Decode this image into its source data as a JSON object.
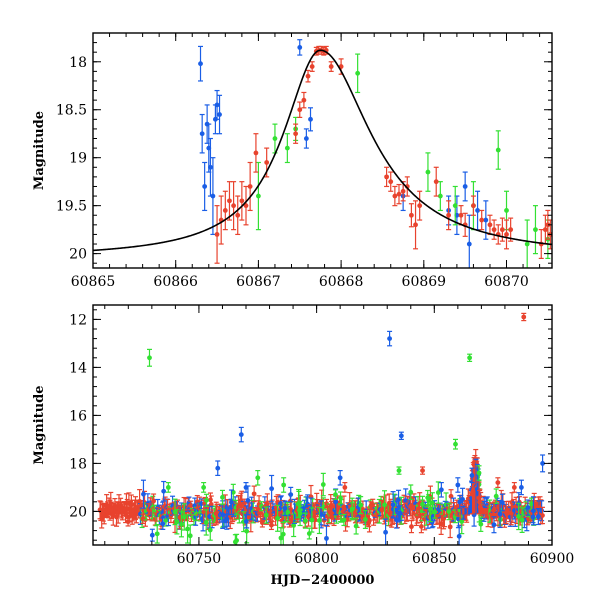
{
  "chart_data": [
    {
      "type": "scatter",
      "panel": "top",
      "xlabel": "",
      "ylabel": "Magnitude",
      "xlim": [
        60865,
        60870.55
      ],
      "ylim": [
        20.15,
        17.7
      ],
      "x_ticks": [
        60865,
        60866,
        60867,
        60868,
        60869,
        60870
      ],
      "x_tick_labels": [
        "60865",
        "60866",
        "60867",
        "60868",
        "60869",
        "60870"
      ],
      "y_ticks": [
        18,
        18.5,
        19,
        19.5,
        20
      ],
      "y_tick_labels": [
        "18",
        "18.5",
        "19",
        "19.5",
        "20"
      ],
      "model_curve": {
        "name": "",
        "color": "#000000",
        "t0": 60867.75,
        "peak": 17.88,
        "base": 20.05,
        "tau_rise": 0.55,
        "tau_fall": 0.75
      },
      "series": [
        {
          "color": "#1a5ee6",
          "points": [
            [
              60866.3,
              18.02,
              0.18
            ],
            [
              60866.32,
              18.75,
              0.2
            ],
            [
              60866.35,
              19.3,
              0.25
            ],
            [
              60866.38,
              18.65,
              0.2
            ],
            [
              60866.4,
              18.9,
              0.25
            ],
            [
              60866.42,
              19.1,
              0.3
            ],
            [
              60866.45,
              19.4,
              0.4
            ],
            [
              60866.48,
              18.6,
              0.15
            ],
            [
              60866.5,
              18.45,
              0.15
            ],
            [
              60866.53,
              18.55,
              0.2
            ],
            [
              60867.5,
              17.85,
              0.08
            ],
            [
              60867.58,
              18.8,
              0.1
            ],
            [
              60867.63,
              18.6,
              0.12
            ],
            [
              60869.3,
              19.55,
              0.15
            ],
            [
              60869.4,
              19.6,
              0.2
            ],
            [
              60869.5,
              19.3,
              0.15
            ],
            [
              60869.55,
              19.9,
              0.3
            ],
            [
              60869.65,
              19.55,
              0.2
            ],
            [
              60869.75,
              19.65,
              0.2
            ],
            [
              60868.75,
              19.4,
              0.15
            ]
          ]
        },
        {
          "color": "#33e033",
          "points": [
            [
              60867.0,
              19.4,
              0.35
            ],
            [
              60867.2,
              18.8,
              0.15
            ],
            [
              60867.35,
              18.9,
              0.15
            ],
            [
              60867.45,
              18.7,
              0.12
            ],
            [
              60868.2,
              18.12,
              0.2
            ],
            [
              60869.05,
              19.15,
              0.2
            ],
            [
              60869.2,
              19.4,
              0.15
            ],
            [
              60869.38,
              19.5,
              0.2
            ],
            [
              60869.6,
              19.5,
              0.25
            ],
            [
              60869.9,
              18.92,
              0.2
            ],
            [
              60870.0,
              19.55,
              0.2
            ],
            [
              60870.25,
              19.9,
              0.25
            ],
            [
              60870.35,
              19.75,
              0.25
            ],
            [
              60870.5,
              19.85,
              0.2
            ]
          ]
        },
        {
          "color": "#e8432e",
          "points": [
            [
              60866.5,
              19.8,
              0.3
            ],
            [
              60866.55,
              19.65,
              0.25
            ],
            [
              60866.6,
              19.55,
              0.2
            ],
            [
              60866.65,
              19.45,
              0.2
            ],
            [
              60866.7,
              19.5,
              0.25
            ],
            [
              60866.75,
              19.6,
              0.2
            ],
            [
              60866.8,
              19.45,
              0.2
            ],
            [
              60866.85,
              19.5,
              0.2
            ],
            [
              60866.9,
              19.3,
              0.25
            ],
            [
              60866.97,
              18.95,
              0.2
            ],
            [
              60867.1,
              19.05,
              0.15
            ],
            [
              60867.45,
              18.75,
              0.1
            ],
            [
              60867.5,
              18.5,
              0.08
            ],
            [
              60867.55,
              18.4,
              0.08
            ],
            [
              60867.6,
              18.15,
              0.06
            ],
            [
              60867.65,
              18.05,
              0.05
            ],
            [
              60867.7,
              17.89,
              0.04
            ],
            [
              60867.73,
              17.88,
              0.04
            ],
            [
              60867.76,
              17.88,
              0.04
            ],
            [
              60867.79,
              17.89,
              0.04
            ],
            [
              60867.82,
              17.88,
              0.04
            ],
            [
              60867.88,
              18.05,
              0.05
            ],
            [
              60868.0,
              18.05,
              0.08
            ],
            [
              60868.55,
              19.2,
              0.1
            ],
            [
              60868.6,
              19.25,
              0.1
            ],
            [
              60868.65,
              19.4,
              0.1
            ],
            [
              60868.7,
              19.38,
              0.1
            ],
            [
              60868.75,
              19.35,
              0.1
            ],
            [
              60868.8,
              19.3,
              0.1
            ],
            [
              60868.85,
              19.6,
              0.12
            ],
            [
              60868.9,
              19.7,
              0.25
            ],
            [
              60868.95,
              19.5,
              0.15
            ],
            [
              60869.15,
              19.25,
              0.15
            ],
            [
              60869.3,
              19.6,
              0.15
            ],
            [
              60869.45,
              19.6,
              0.1
            ],
            [
              60869.5,
              19.7,
              0.12
            ],
            [
              60869.6,
              19.5,
              0.1
            ],
            [
              60869.7,
              19.65,
              0.1
            ],
            [
              60869.8,
              19.7,
              0.1
            ],
            [
              60869.85,
              19.75,
              0.1
            ],
            [
              60869.9,
              19.8,
              0.1
            ],
            [
              60869.95,
              19.75,
              0.12
            ],
            [
              60870.0,
              19.8,
              0.15
            ],
            [
              60870.05,
              19.75,
              0.12
            ],
            [
              60870.42,
              19.9,
              0.15
            ],
            [
              60870.47,
              19.75,
              0.15
            ],
            [
              60870.5,
              19.7,
              0.15
            ],
            [
              60870.53,
              19.8,
              0.15
            ]
          ]
        }
      ]
    },
    {
      "type": "scatter",
      "panel": "bottom",
      "xlabel": "HJD−2400000",
      "ylabel": "Magnitude",
      "xlim": [
        60705,
        60900
      ],
      "ylim": [
        21.4,
        11.4
      ],
      "x_ticks": [
        60750,
        60800,
        60850,
        60900
      ],
      "x_tick_labels": [
        "60750",
        "60800",
        "60850",
        "60900"
      ],
      "y_ticks": [
        12,
        14,
        16,
        18,
        20
      ],
      "y_tick_labels": [
        "12",
        "14",
        "16",
        "18",
        "20"
      ],
      "baseline": {
        "start_red": 60708,
        "start_other": 60725,
        "end": 60896,
        "mag": 20.0,
        "scatter": 0.35
      },
      "flare": {
        "start": 60862,
        "peak_x": 60867.5,
        "peak_mag": 17.9,
        "end": 60872
      },
      "series": [
        {
          "color": "#1a5ee6",
          "points": [
            [
              60758,
              18.2,
              0.3
            ],
            [
              60768,
              16.8,
              0.3
            ],
            [
              60831,
              12.8,
              0.3
            ],
            [
              60836,
              16.85,
              0.15
            ],
            [
              60810,
              18.6,
              0.3
            ],
            [
              60770,
              19.0,
              0.2
            ],
            [
              60866,
              18.5,
              0.3
            ],
            [
              60896,
              18.0,
              0.35
            ],
            [
              60860,
              18.9,
              0.3
            ],
            [
              60887,
              19.0,
              0.3
            ],
            [
              60789,
              19.3,
              0.3
            ],
            [
              60853,
              19.1,
              0.3
            ]
          ]
        },
        {
          "color": "#33e033",
          "points": [
            [
              60729,
              13.6,
              0.35
            ],
            [
              60865,
              13.6,
              0.15
            ],
            [
              60859,
              17.2,
              0.2
            ],
            [
              60835,
              18.3,
              0.15
            ],
            [
              60737,
              19.0,
              0.2
            ],
            [
              60786,
              18.9,
              0.3
            ],
            [
              60775,
              18.6,
              0.3
            ],
            [
              60869,
              18.4,
              0.3
            ],
            [
              60752,
              19.0,
              0.2
            ],
            [
              60808,
              19.3,
              0.2
            ],
            [
              60840,
              19.2,
              0.3
            ]
          ]
        },
        {
          "color": "#e8432e",
          "points": [
            [
              60888,
              11.9,
              0.15
            ],
            [
              60845,
              18.3,
              0.15
            ],
            [
              60877,
              18.8,
              0.2
            ],
            [
              60884,
              19.0,
              0.2
            ],
            [
              60812,
              19.0,
              0.2
            ]
          ]
        }
      ]
    }
  ]
}
